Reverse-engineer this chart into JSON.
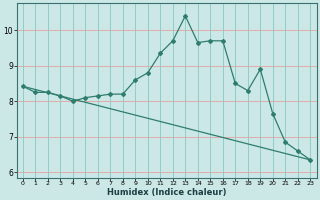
{
  "xlabel": "Humidex (Indice chaleur)",
  "bg_color": "#cce8e6",
  "grid_color_h": "#e8a0a0",
  "grid_color_v": "#88c8c4",
  "line_color": "#2e7d6e",
  "xlim": [
    -0.5,
    23.5
  ],
  "ylim": [
    5.85,
    10.75
  ],
  "yticks": [
    6,
    7,
    8,
    9,
    10
  ],
  "xticks": [
    0,
    1,
    2,
    3,
    4,
    5,
    6,
    7,
    8,
    9,
    10,
    11,
    12,
    13,
    14,
    15,
    16,
    17,
    18,
    19,
    20,
    21,
    22,
    23
  ],
  "wavy_x": [
    0,
    1,
    2,
    3,
    4,
    5,
    6,
    7,
    8,
    9,
    10,
    11,
    12,
    13,
    14,
    15,
    16,
    17,
    18,
    19,
    20,
    21,
    22,
    23
  ],
  "wavy_y": [
    8.42,
    8.25,
    8.25,
    8.15,
    8.0,
    8.1,
    8.15,
    8.2,
    8.2,
    8.6,
    8.8,
    9.35,
    9.7,
    10.4,
    9.65,
    9.7,
    9.7,
    8.5,
    8.3,
    8.9,
    7.65,
    6.85,
    6.6,
    6.35
  ],
  "trend_x": [
    0,
    23
  ],
  "trend_y": [
    8.42,
    6.35
  ]
}
